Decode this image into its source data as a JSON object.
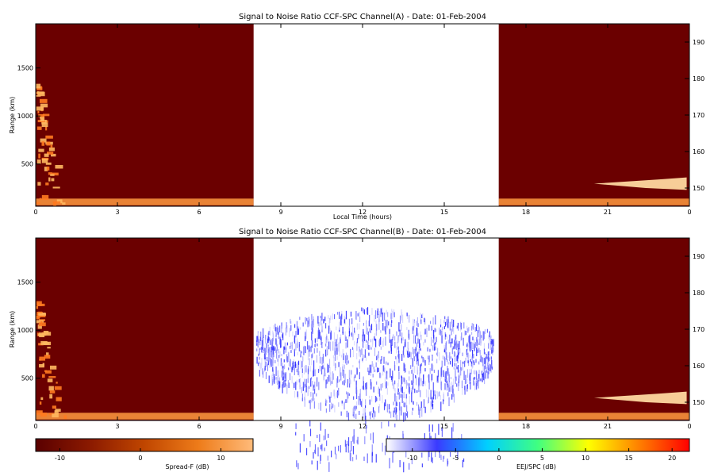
{
  "chart_data": [
    {
      "type": "heatmap",
      "title": "Signal to Noise Ratio CCF-SPC Channel(A) - Date: 01-Feb-2004",
      "xlabel": "Local Time (hours)",
      "ylabel": "Range (km)",
      "xlim": [
        0,
        24
      ],
      "ylim": [
        60,
        1960
      ],
      "x_ticks": [
        "0",
        "3",
        "6",
        "9",
        "12",
        "15",
        "18",
        "21",
        "0"
      ],
      "y_ticks": [
        "500",
        "1000",
        "1500"
      ],
      "y2_ticks": [
        "150",
        "160",
        "170",
        "180",
        "190"
      ],
      "y2lim": [
        145,
        195
      ],
      "data_gap_hours": [
        8,
        17
      ],
      "background_color": "#6b0000",
      "features": [
        {
          "region": "low-altitude layer",
          "x": [
            0,
            24
          ],
          "range_km": [
            70,
            140
          ],
          "snr_db": 6
        },
        {
          "region": "early-morning spread-F",
          "x": [
            0,
            1.5
          ],
          "range_km": [
            100,
            1350
          ],
          "snr_db": 8
        },
        {
          "region": "evening echo",
          "x": [
            20.5,
            23.9
          ],
          "range_km": [
            250,
            340
          ],
          "snr_db": 12
        }
      ],
      "scatter_points": []
    },
    {
      "type": "heatmap",
      "title": "Signal to Noise Ratio CCF-SPC Channel(B) - Date: 01-Feb-2004",
      "xlabel": "",
      "ylabel": "Range (km)",
      "xlim": [
        0,
        24
      ],
      "ylim": [
        60,
        1960
      ],
      "x_ticks": [
        "0",
        "3",
        "6",
        "9",
        "12",
        "15",
        "18",
        "21",
        "0"
      ],
      "y_ticks": [
        "500",
        "1000",
        "1500"
      ],
      "y2_ticks": [
        "150",
        "160",
        "170",
        "180",
        "190"
      ],
      "y2lim": [
        145,
        195
      ],
      "data_gap_hours": [
        8,
        17
      ],
      "background_color": "#6b0000",
      "features": [
        {
          "region": "low-altitude layer",
          "x": [
            0,
            24
          ],
          "range_km": [
            70,
            140
          ],
          "snr_db": 6
        },
        {
          "region": "early-morning spread-F",
          "x": [
            0,
            1.5
          ],
          "range_km": [
            100,
            1350
          ],
          "snr_db": 8
        },
        {
          "region": "evening echo",
          "x": [
            20.5,
            23.9
          ],
          "range_km": [
            250,
            340
          ],
          "snr_db": 12
        }
      ],
      "eej_spc_echo": {
        "x": [
          8.1,
          16.8
        ],
        "range_km": [
          -400,
          1250
        ],
        "snr_db_range": [
          -10,
          -3
        ]
      }
    }
  ],
  "colorbars": [
    {
      "label": "Spread-F (dB)",
      "range": [
        -13,
        14
      ],
      "ticks": [
        "-10",
        "0",
        "10"
      ],
      "tick_values": [
        -10,
        0,
        10
      ],
      "stops": [
        "#5a0000",
        "#8b1a00",
        "#c04600",
        "#ee7c1a",
        "#ffbb7a"
      ]
    },
    {
      "label": "EEJ/SPC (dB)",
      "range": [
        -13,
        22
      ],
      "ticks": [
        "-10",
        "-5",
        "0",
        "5",
        "10",
        "15",
        "20"
      ],
      "tick_values": [
        -10,
        -5,
        0,
        5,
        10,
        15,
        20
      ],
      "stops": [
        "#ffffff",
        "#3a3aff",
        "#00d0ff",
        "#40ff80",
        "#ffff00",
        "#ff8000",
        "#ff0000"
      ]
    }
  ]
}
